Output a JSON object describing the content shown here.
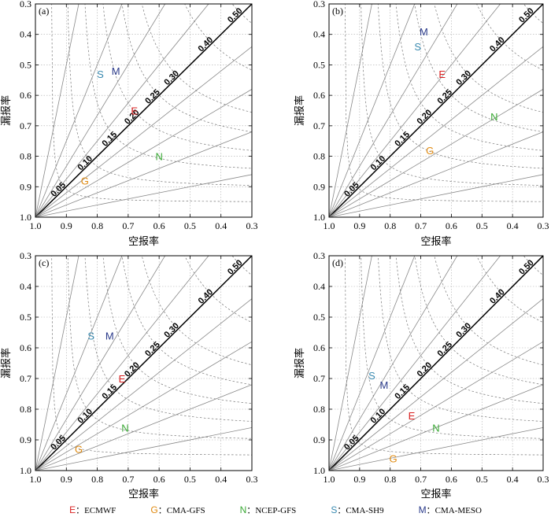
{
  "axis_labels": {
    "x": "空报率",
    "y": "漏报率"
  },
  "legend": [
    {
      "letter": "E",
      "desc": "：ECMWF",
      "color": "#d92020"
    },
    {
      "letter": "G",
      "desc": "：CMA-GFS",
      "color": "#e08a10"
    },
    {
      "letter": "N",
      "desc": "：NCEP-GFS",
      "color": "#3aa835"
    },
    {
      "letter": "S",
      "desc": "：CMA-SH9",
      "color": "#3a8ab0"
    },
    {
      "letter": "M",
      "desc": "：CMA-MESO",
      "color": "#2a3a8a"
    }
  ],
  "chart_data": [
    {
      "panel": "(a)",
      "type": "scatter",
      "xlabel": "空报率",
      "ylabel": "漏报率",
      "xlim": [
        1.0,
        0.3
      ],
      "ylim": [
        1.0,
        0.3
      ],
      "x_ticks": [
        "1.0",
        "0.9",
        "0.8",
        "0.7",
        "0.6",
        "0.5",
        "0.4",
        "0.3"
      ],
      "y_ticks": [
        "0.3",
        "0.4",
        "0.5",
        "0.6",
        "0.7",
        "0.8",
        "0.9",
        "1.0"
      ],
      "bias_lines": [
        "5.00",
        "2.50",
        "1.67",
        "1.25",
        "1.00",
        "0.80",
        "0.60",
        "0.40",
        "0.20"
      ],
      "ts_curves": [
        "0.05",
        "0.10",
        "0.15",
        "0.20",
        "0.25",
        "0.30",
        "0.40",
        "0.50"
      ],
      "points": [
        {
          "label": "E",
          "x": 0.68,
          "y": 0.65
        },
        {
          "label": "G",
          "x": 0.84,
          "y": 0.88
        },
        {
          "label": "N",
          "x": 0.6,
          "y": 0.8
        },
        {
          "label": "S",
          "x": 0.79,
          "y": 0.53
        },
        {
          "label": "M",
          "x": 0.74,
          "y": 0.52
        }
      ]
    },
    {
      "panel": "(b)",
      "type": "scatter",
      "xlabel": "空报率",
      "ylabel": "漏报率",
      "xlim": [
        1.0,
        0.3
      ],
      "ylim": [
        1.0,
        0.3
      ],
      "x_ticks": [
        "1.0",
        "0.9",
        "0.8",
        "0.7",
        "0.6",
        "0.5",
        "0.4",
        "0.3"
      ],
      "y_ticks": [
        "0.3",
        "0.4",
        "0.5",
        "0.6",
        "0.7",
        "0.8",
        "0.9",
        "1.0"
      ],
      "bias_lines": [
        "5.00",
        "2.50",
        "1.67",
        "1.25",
        "1.00",
        "0.80",
        "0.60",
        "0.40",
        "0.20"
      ],
      "ts_curves": [
        "0.05",
        "0.10",
        "0.15",
        "0.20",
        "0.25",
        "0.30",
        "0.40",
        "0.50"
      ],
      "points": [
        {
          "label": "E",
          "x": 0.63,
          "y": 0.53
        },
        {
          "label": "G",
          "x": 0.67,
          "y": 0.78
        },
        {
          "label": "N",
          "x": 0.46,
          "y": 0.67
        },
        {
          "label": "S",
          "x": 0.71,
          "y": 0.44
        },
        {
          "label": "M",
          "x": 0.69,
          "y": 0.39
        }
      ]
    },
    {
      "panel": "(c)",
      "type": "scatter",
      "xlabel": "空报率",
      "ylabel": "漏报率",
      "xlim": [
        1.0,
        0.3
      ],
      "ylim": [
        1.0,
        0.3
      ],
      "x_ticks": [
        "1.0",
        "0.9",
        "0.8",
        "0.7",
        "0.6",
        "0.5",
        "0.4",
        "0.3"
      ],
      "y_ticks": [
        "0.3",
        "0.4",
        "0.5",
        "0.6",
        "0.7",
        "0.8",
        "0.9",
        "1.0"
      ],
      "bias_lines": [
        "5.00",
        "2.50",
        "1.67",
        "1.25",
        "1.00",
        "0.80",
        "0.60",
        "0.40",
        "0.20"
      ],
      "ts_curves": [
        "0.05",
        "0.10",
        "0.15",
        "0.20",
        "0.25",
        "0.30",
        "0.40",
        "0.50"
      ],
      "points": [
        {
          "label": "E",
          "x": 0.72,
          "y": 0.7
        },
        {
          "label": "G",
          "x": 0.86,
          "y": 0.93
        },
        {
          "label": "N",
          "x": 0.71,
          "y": 0.86
        },
        {
          "label": "S",
          "x": 0.82,
          "y": 0.56
        },
        {
          "label": "M",
          "x": 0.76,
          "y": 0.56
        }
      ]
    },
    {
      "panel": "(d)",
      "type": "scatter",
      "xlabel": "空报率",
      "ylabel": "漏报率",
      "xlim": [
        1.0,
        0.3
      ],
      "ylim": [
        1.0,
        0.3
      ],
      "x_ticks": [
        "1.0",
        "0.9",
        "0.8",
        "0.7",
        "0.6",
        "0.5",
        "0.4",
        "0.3"
      ],
      "y_ticks": [
        "0.3",
        "0.4",
        "0.5",
        "0.6",
        "0.7",
        "0.8",
        "0.9",
        "1.0"
      ],
      "bias_lines": [
        "5.00",
        "2.50",
        "1.67",
        "1.25",
        "1.00",
        "0.80",
        "0.60",
        "0.40",
        "0.20"
      ],
      "ts_curves": [
        "0.05",
        "0.10",
        "0.15",
        "0.20",
        "0.25",
        "0.30",
        "0.40",
        "0.50"
      ],
      "points": [
        {
          "label": "E",
          "x": 0.73,
          "y": 0.82
        },
        {
          "label": "G",
          "x": 0.79,
          "y": 0.96
        },
        {
          "label": "N",
          "x": 0.65,
          "y": 0.86
        },
        {
          "label": "S",
          "x": 0.86,
          "y": 0.69
        },
        {
          "label": "M",
          "x": 0.82,
          "y": 0.72
        }
      ]
    }
  ]
}
